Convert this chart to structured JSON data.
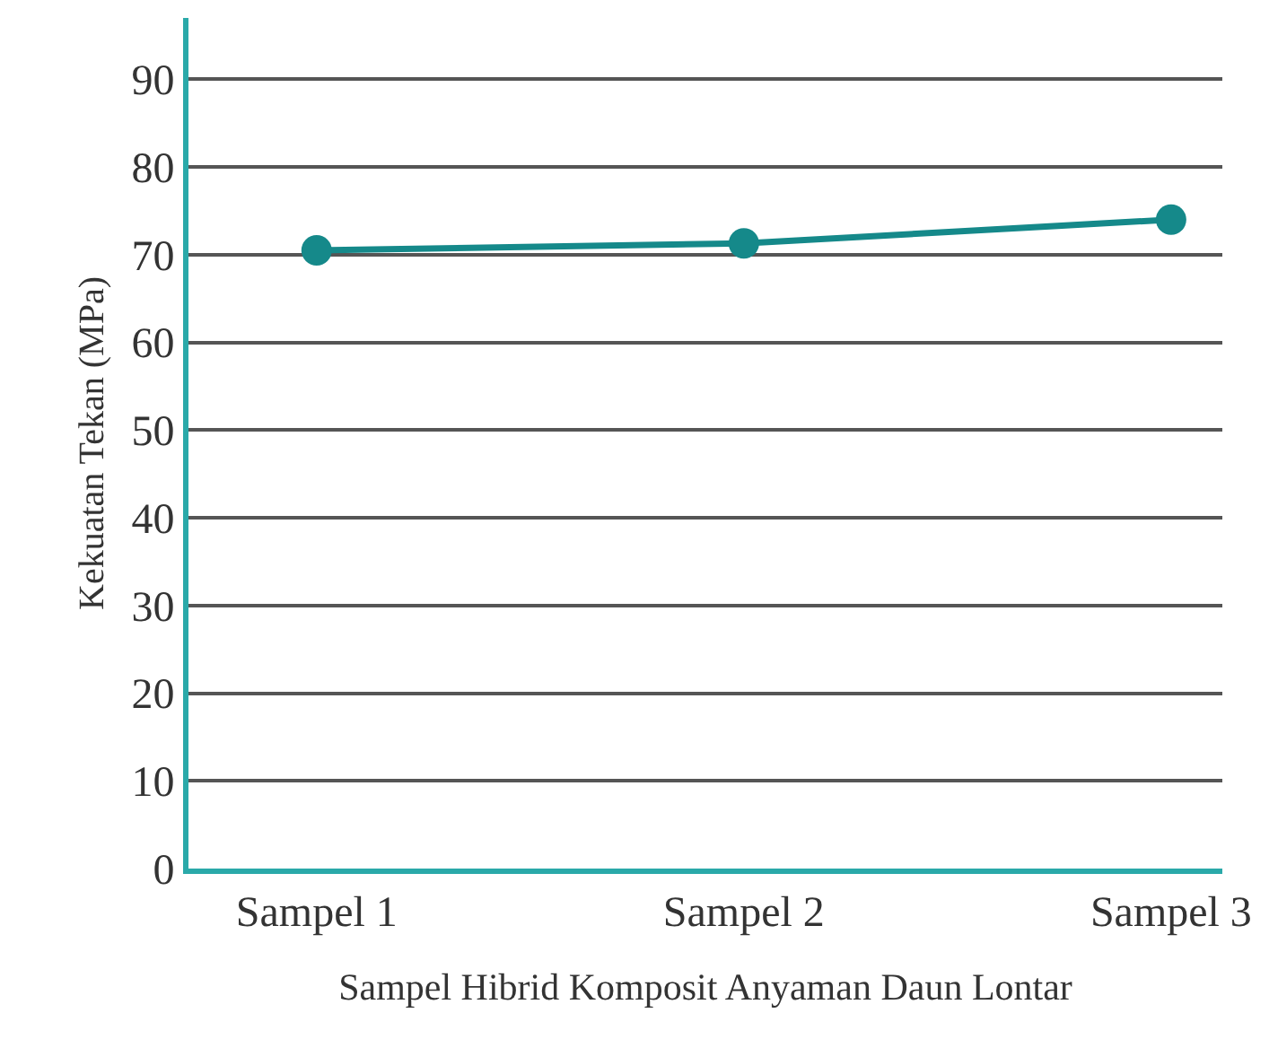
{
  "chart_data": {
    "type": "line",
    "xlabel": "Sampel Hibrid Komposit Anyaman Daun Lontar",
    "ylabel": "Kekuatan Tekan (MPa)",
    "categories": [
      "Sampel 1",
      "Sampel 2",
      "Sampel 3"
    ],
    "series": [
      {
        "color": "#15898a",
        "values": [
          70.5,
          71.3,
          74.0
        ]
      }
    ],
    "ylim": [
      0,
      97
    ],
    "yticks": [
      0,
      10,
      20,
      30,
      40,
      50,
      60,
      70,
      80,
      90
    ],
    "grid": "y",
    "legend": false,
    "marker": "circle",
    "line_style": "solid"
  }
}
